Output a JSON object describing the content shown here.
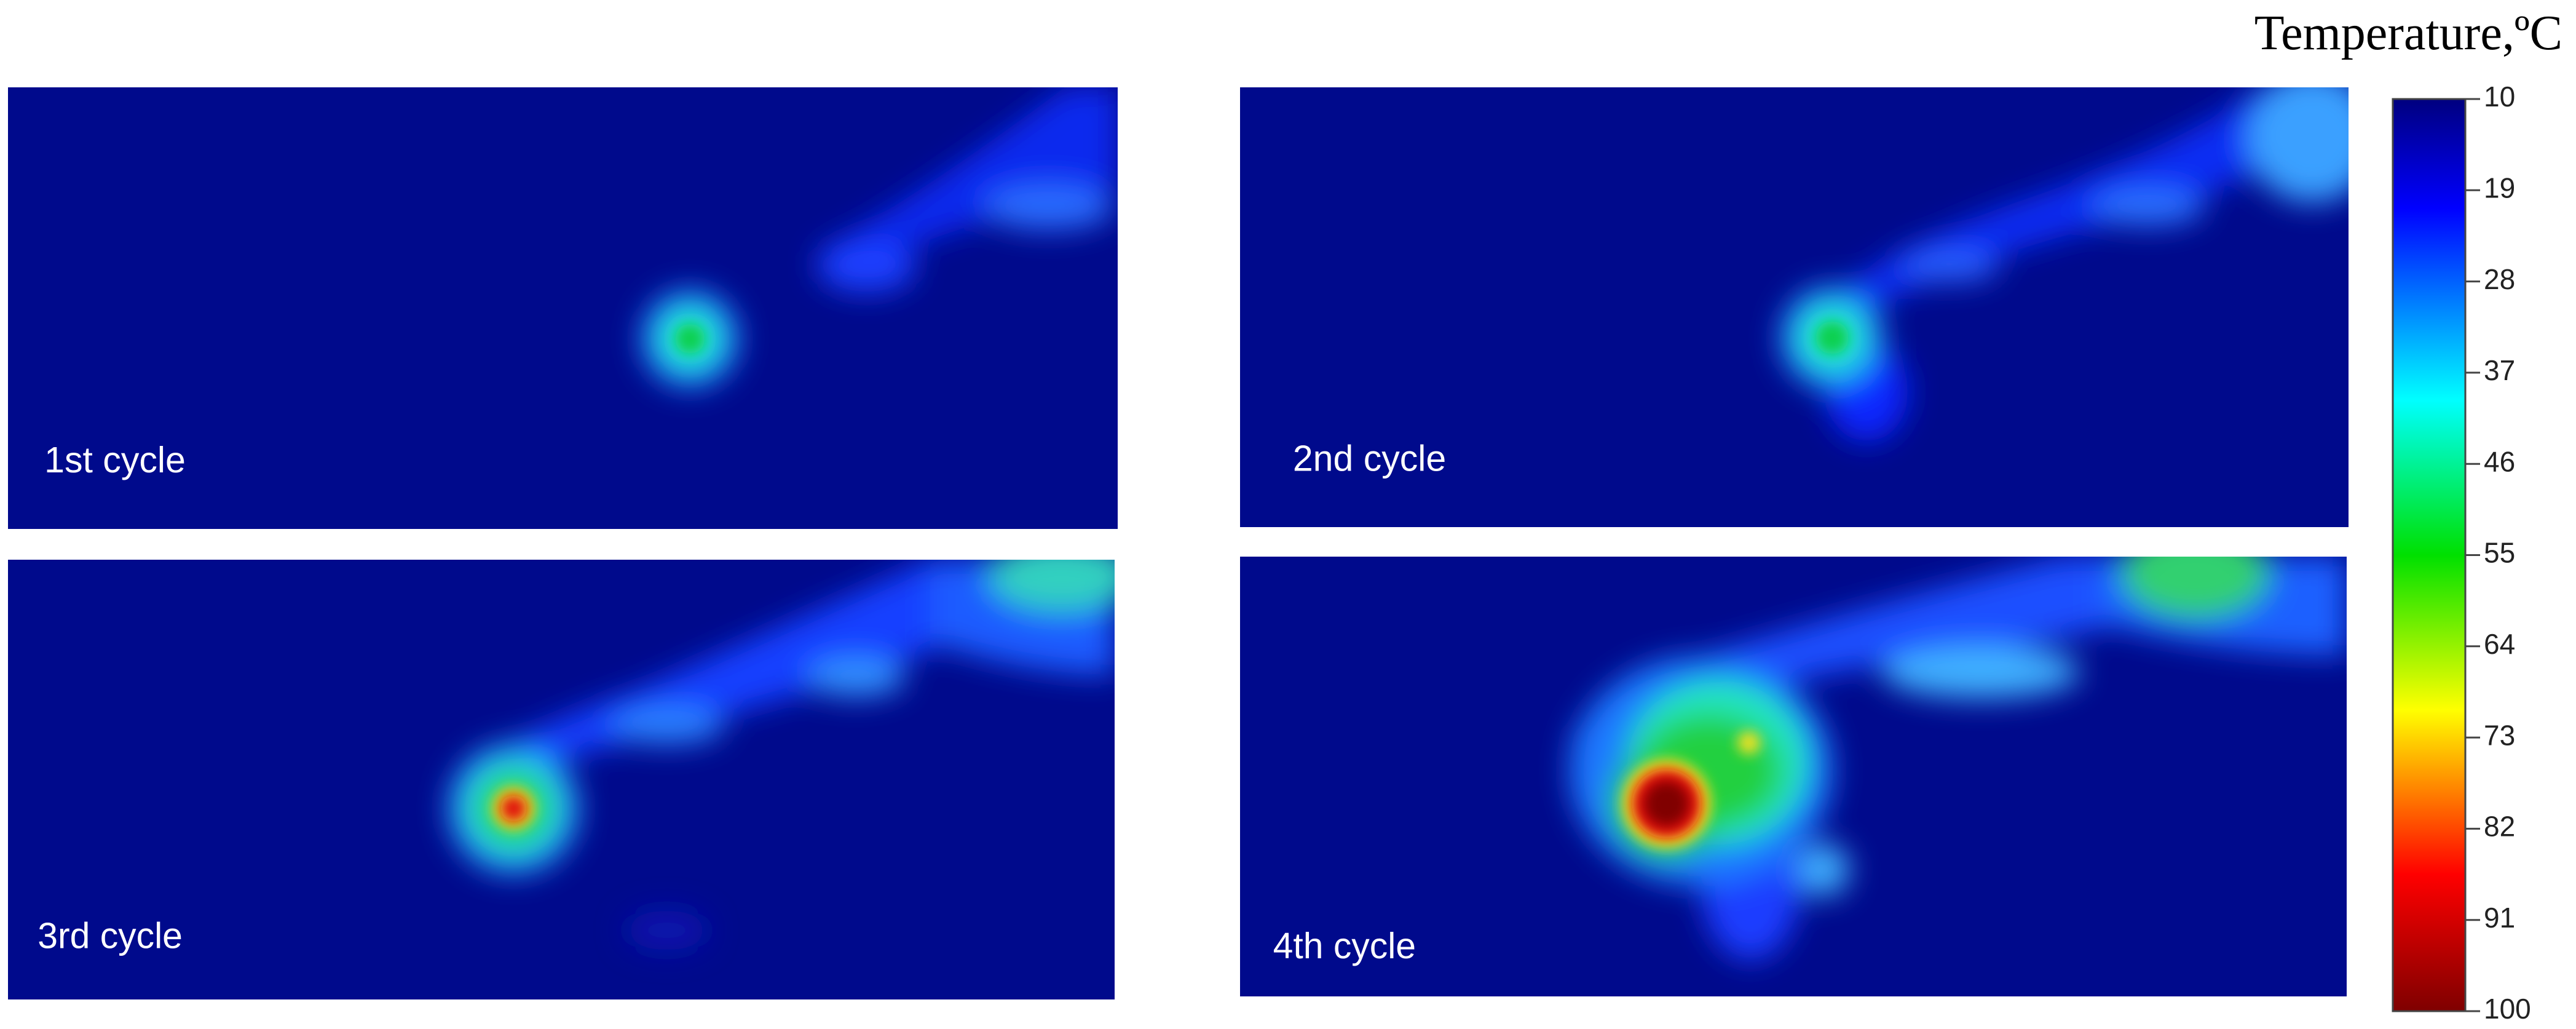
{
  "colorbar": {
    "title": "Temperature,ºC",
    "range": [
      10,
      100
    ],
    "ticks": [
      10,
      19,
      28,
      37,
      46,
      55,
      64,
      73,
      82,
      91,
      100
    ]
  },
  "panels": [
    {
      "label": "1st cycle"
    },
    {
      "label": "2nd cycle"
    },
    {
      "label": "3rd cycle"
    },
    {
      "label": "4th cycle"
    }
  ]
}
